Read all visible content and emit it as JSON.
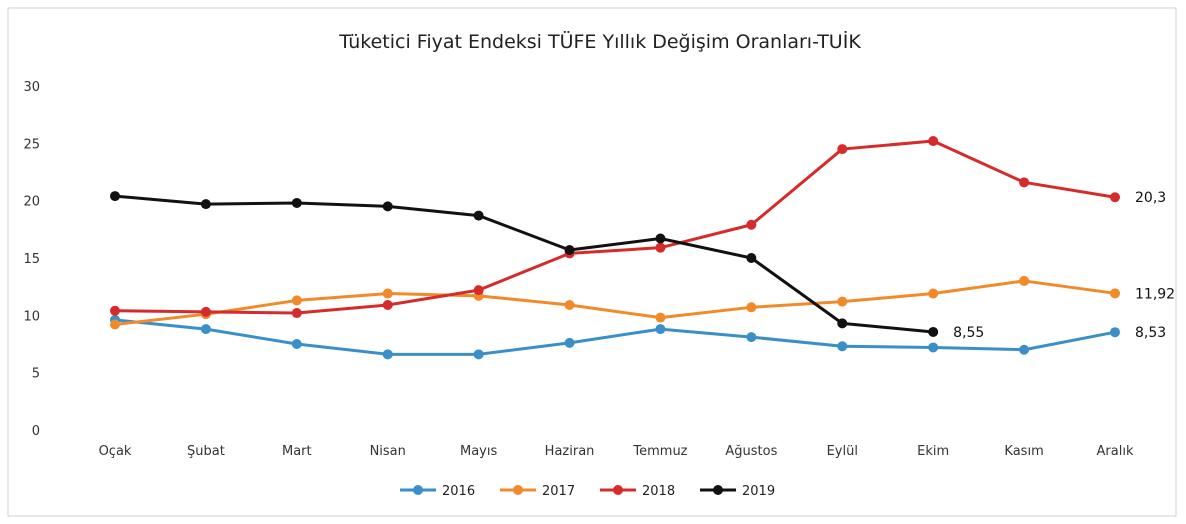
{
  "chart_data": {
    "type": "line",
    "title": "Tüketici Fiyat Endeksi TÜFE Yıllık Değişim Oranları-TUİK",
    "xlabel": "",
    "ylabel": "",
    "ylim": [
      0,
      30
    ],
    "yticks": [
      0,
      5,
      10,
      15,
      20,
      25,
      30
    ],
    "grid": false,
    "legend_position": "bottom",
    "categories": [
      "Oçak",
      "Şubat",
      "Mart",
      "Nisan",
      "Mayıs",
      "Haziran",
      "Temmuz",
      "Ağustos",
      "Eylül",
      "Ekim",
      "Kasım",
      "Aralık"
    ],
    "series": [
      {
        "name": "2016",
        "color": "#3a8fc8",
        "values": [
          9.6,
          8.8,
          7.5,
          6.6,
          6.6,
          7.6,
          8.8,
          8.1,
          7.3,
          7.2,
          7.0,
          8.53
        ],
        "end_label": "8,53"
      },
      {
        "name": "2017",
        "color": "#f08a2a",
        "values": [
          9.2,
          10.1,
          11.3,
          11.9,
          11.7,
          10.9,
          9.8,
          10.7,
          11.2,
          11.9,
          13.0,
          11.92
        ],
        "end_label": "11,92"
      },
      {
        "name": "2018",
        "color": "#d62b2b",
        "values": [
          10.4,
          10.3,
          10.2,
          10.9,
          12.2,
          15.4,
          15.9,
          17.9,
          24.5,
          25.2,
          21.6,
          20.3
        ],
        "end_label": "20,3"
      },
      {
        "name": "2019",
        "color": "#111111",
        "values": [
          20.4,
          19.7,
          19.8,
          19.5,
          18.7,
          15.7,
          16.7,
          15.0,
          9.3,
          8.55,
          null,
          null
        ],
        "end_label": "8,55"
      }
    ]
  }
}
